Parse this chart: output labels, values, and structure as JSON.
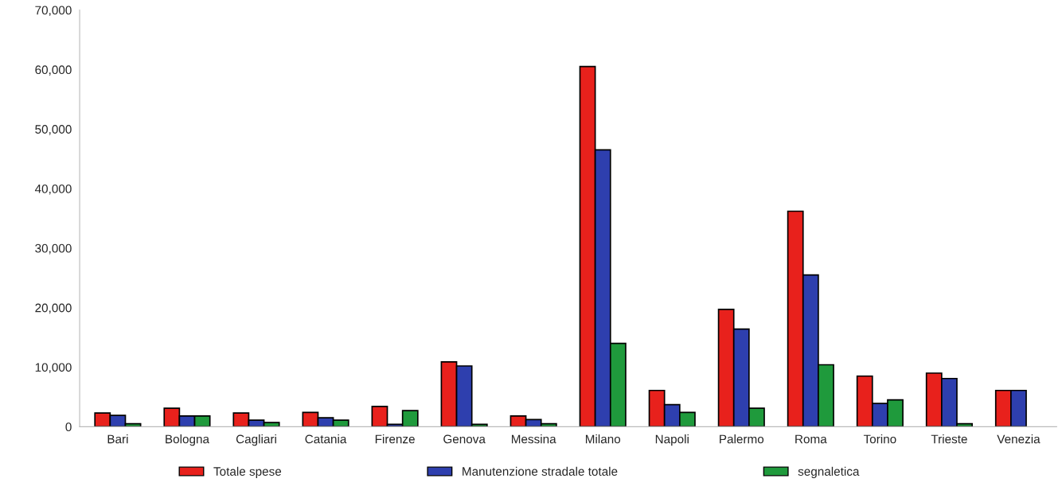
{
  "chart_data": {
    "type": "bar",
    "categories": [
      "Bari",
      "Bologna",
      "Cagliari",
      "Catania",
      "Firenze",
      "Genova",
      "Messina",
      "Milano",
      "Napoli",
      "Palermo",
      "Roma",
      "Torino",
      "Trieste",
      "Venezia"
    ],
    "series": [
      {
        "name": "Totale spese",
        "color": "#e8211c",
        "values": [
          2300,
          3100,
          2300,
          2400,
          3400,
          10900,
          1800,
          60500,
          6100,
          19700,
          36200,
          8500,
          9000,
          6100
        ]
      },
      {
        "name": "Manutenzione stradale totale",
        "color": "#2e3fae",
        "values": [
          1900,
          1800,
          1100,
          1500,
          400,
          10200,
          1200,
          46500,
          3700,
          16400,
          25500,
          3900,
          8100,
          6100
        ]
      },
      {
        "name": "segnaletica",
        "color": "#1f9a3c",
        "values": [
          500,
          1800,
          700,
          1100,
          2700,
          400,
          500,
          14000,
          2400,
          3100,
          10400,
          4500,
          500,
          null
        ]
      }
    ],
    "ylim": [
      0,
      70000
    ],
    "yticks": [
      {
        "value": 0,
        "label": "0"
      },
      {
        "value": 10000,
        "label": "10,000"
      },
      {
        "value": 20000,
        "label": "20,000"
      },
      {
        "value": 30000,
        "label": "30,000"
      },
      {
        "value": 40000,
        "label": "40,000"
      },
      {
        "value": 50000,
        "label": "50,000"
      },
      {
        "value": 60000,
        "label": "60,000"
      },
      {
        "value": 70000,
        "label": "70,000"
      }
    ],
    "grid": false,
    "legend": "bottom"
  }
}
